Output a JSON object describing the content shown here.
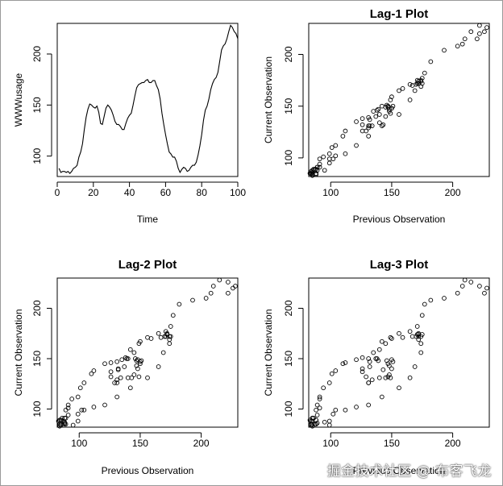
{
  "chart_data": [
    {
      "type": "line",
      "title": "",
      "xlabel": "Time",
      "ylabel": "WWWusage",
      "xlim": [
        0,
        100
      ],
      "ylim": [
        80,
        230
      ],
      "xticks": [
        0,
        20,
        40,
        60,
        80,
        100
      ],
      "yticks": [
        100,
        150,
        200
      ],
      "x": [
        1,
        2,
        3,
        4,
        5,
        6,
        7,
        8,
        9,
        10,
        11,
        12,
        13,
        14,
        15,
        16,
        17,
        18,
        19,
        20,
        21,
        22,
        23,
        24,
        25,
        26,
        27,
        28,
        29,
        30,
        31,
        32,
        33,
        34,
        35,
        36,
        37,
        38,
        39,
        40,
        41,
        42,
        43,
        44,
        45,
        46,
        47,
        48,
        49,
        50,
        51,
        52,
        53,
        54,
        55,
        56,
        57,
        58,
        59,
        60,
        61,
        62,
        63,
        64,
        65,
        66,
        67,
        68,
        69,
        70,
        71,
        72,
        73,
        74,
        75,
        76,
        77,
        78,
        79,
        80,
        81,
        82,
        83,
        84,
        85,
        86,
        87,
        88,
        89,
        90,
        91,
        92,
        93,
        94,
        95,
        96,
        97,
        98,
        99,
        100
      ],
      "y": [
        88,
        84,
        85,
        85,
        84,
        85,
        83,
        85,
        88,
        89,
        91,
        99,
        104,
        112,
        126,
        138,
        146,
        151,
        150,
        148,
        147,
        149,
        143,
        132,
        131,
        139,
        147,
        150,
        148,
        145,
        140,
        134,
        131,
        131,
        129,
        126,
        126,
        132,
        137,
        140,
        142,
        150,
        159,
        167,
        170,
        171,
        172,
        172,
        174,
        175,
        172,
        172,
        174,
        174,
        169,
        165,
        156,
        142,
        131,
        121,
        112,
        104,
        102,
        99,
        99,
        95,
        88,
        84,
        87,
        89,
        88,
        85,
        86,
        89,
        91,
        91,
        94,
        101,
        110,
        121,
        135,
        145,
        149,
        156,
        165,
        171,
        175,
        177,
        182,
        193,
        204,
        208,
        210,
        215,
        222,
        228,
        226,
        222,
        220,
        215
      ]
    },
    {
      "type": "scatter",
      "title": "Lag-1 Plot",
      "lag": 1,
      "xlabel": "Previous Observation",
      "ylabel": "Current Observation",
      "xlim": [
        82,
        230
      ],
      "ylim": [
        82,
        230
      ],
      "xticks": [
        100,
        150,
        200
      ],
      "yticks": [
        100,
        150,
        200
      ]
    },
    {
      "type": "scatter",
      "title": "Lag-2 Plot",
      "lag": 2,
      "xlabel": "Previous Observation",
      "ylabel": "Current Observation",
      "xlim": [
        82,
        230
      ],
      "ylim": [
        82,
        230
      ],
      "xticks": [
        100,
        150,
        200
      ],
      "yticks": [
        100,
        150,
        200
      ]
    },
    {
      "type": "scatter",
      "title": "Lag-3 Plot",
      "lag": 3,
      "xlabel": "Previous Observation",
      "ylabel": "Current Observation",
      "xlim": [
        82,
        230
      ],
      "ylim": [
        82,
        230
      ],
      "xticks": [
        100,
        150,
        200
      ],
      "yticks": [
        100,
        150,
        200
      ]
    }
  ],
  "watermark": "掘金技术社区 @ 布客飞龙"
}
